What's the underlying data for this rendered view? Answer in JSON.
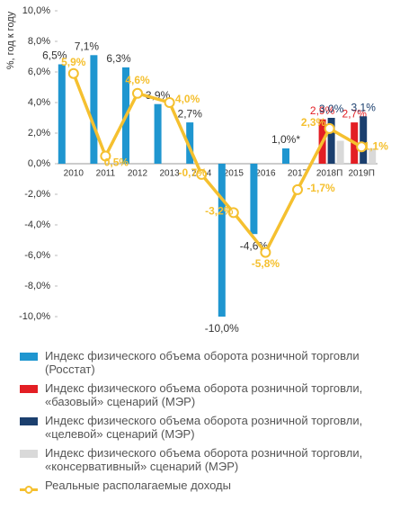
{
  "chart_data": {
    "type": "bar",
    "y_label": "%, год к году",
    "categories": [
      "2010",
      "2011",
      "2012",
      "2013",
      "2014",
      "2015",
      "2016",
      "2017",
      "2018П",
      "2019П"
    ],
    "ylim": [
      -10,
      10
    ],
    "yticks": [
      {
        "value": -10,
        "label": "-10,0%"
      },
      {
        "value": -8,
        "label": "-8,0%"
      },
      {
        "value": -6,
        "label": "-6,0%"
      },
      {
        "value": -4,
        "label": "-4,0%"
      },
      {
        "value": -2,
        "label": "-2,0%"
      },
      {
        "value": 0,
        "label": "0,0%"
      },
      {
        "value": 2,
        "label": "2,0%"
      },
      {
        "value": 4,
        "label": "4,0%"
      },
      {
        "value": 6,
        "label": "6,0%"
      },
      {
        "value": 8,
        "label": "8,0%"
      },
      {
        "value": 10,
        "label": "10,0%"
      }
    ],
    "grid": false,
    "series": [
      {
        "name": "Индекс физического объема оборота розничной торговли (Росстат)",
        "color": "#1f96d0",
        "type": "bar",
        "values": [
          6.5,
          7.1,
          6.3,
          3.9,
          2.7,
          -10.0,
          -4.6,
          1.0,
          null,
          null
        ],
        "value_labels": [
          "6,5%",
          "7,1%",
          "6,3%",
          "3,9%",
          "2,7%",
          "-10,0%",
          "-4,6%",
          "1,0%*",
          null,
          null
        ]
      },
      {
        "name": "Индекс физического объема оборота розничной торговли, «базовый» сценарий (МЭР)",
        "color": "#e31e24",
        "type": "bar",
        "values": [
          null,
          null,
          null,
          null,
          null,
          null,
          null,
          null,
          2.9,
          2.7
        ],
        "value_labels": [
          null,
          null,
          null,
          null,
          null,
          null,
          null,
          null,
          "2,9%",
          "2,7%"
        ]
      },
      {
        "name": "Индекс физического объема оборота розничной торговли, «целевой» сценарий (МЭР)",
        "color": "#1b3f6e",
        "type": "bar",
        "values": [
          null,
          null,
          null,
          null,
          null,
          null,
          null,
          null,
          3.0,
          3.1
        ],
        "value_labels": [
          null,
          null,
          null,
          null,
          null,
          null,
          null,
          null,
          "3,0%",
          "3,1%"
        ]
      },
      {
        "name": "Индекс физического объема оборота розничной торговли, «консервативный» сценарий (МЭР)",
        "color": "#d9d9d9",
        "type": "bar",
        "values": [
          null,
          null,
          null,
          null,
          null,
          null,
          null,
          null,
          1.5,
          1.0
        ]
      },
      {
        "name": "Реальные располагаемые доходы",
        "color": "#f5c02f",
        "type": "line",
        "values": [
          5.9,
          0.5,
          4.6,
          4.0,
          -0.7,
          -3.2,
          -5.8,
          -1.7,
          2.3,
          1.1
        ],
        "value_labels": [
          "5,9%",
          "0,5%",
          "4,6%",
          "4,0%",
          "-0,7%",
          "-3,2%",
          "-5,8%",
          "-1,7%",
          "2,3%",
          "1,1%"
        ]
      }
    ]
  }
}
